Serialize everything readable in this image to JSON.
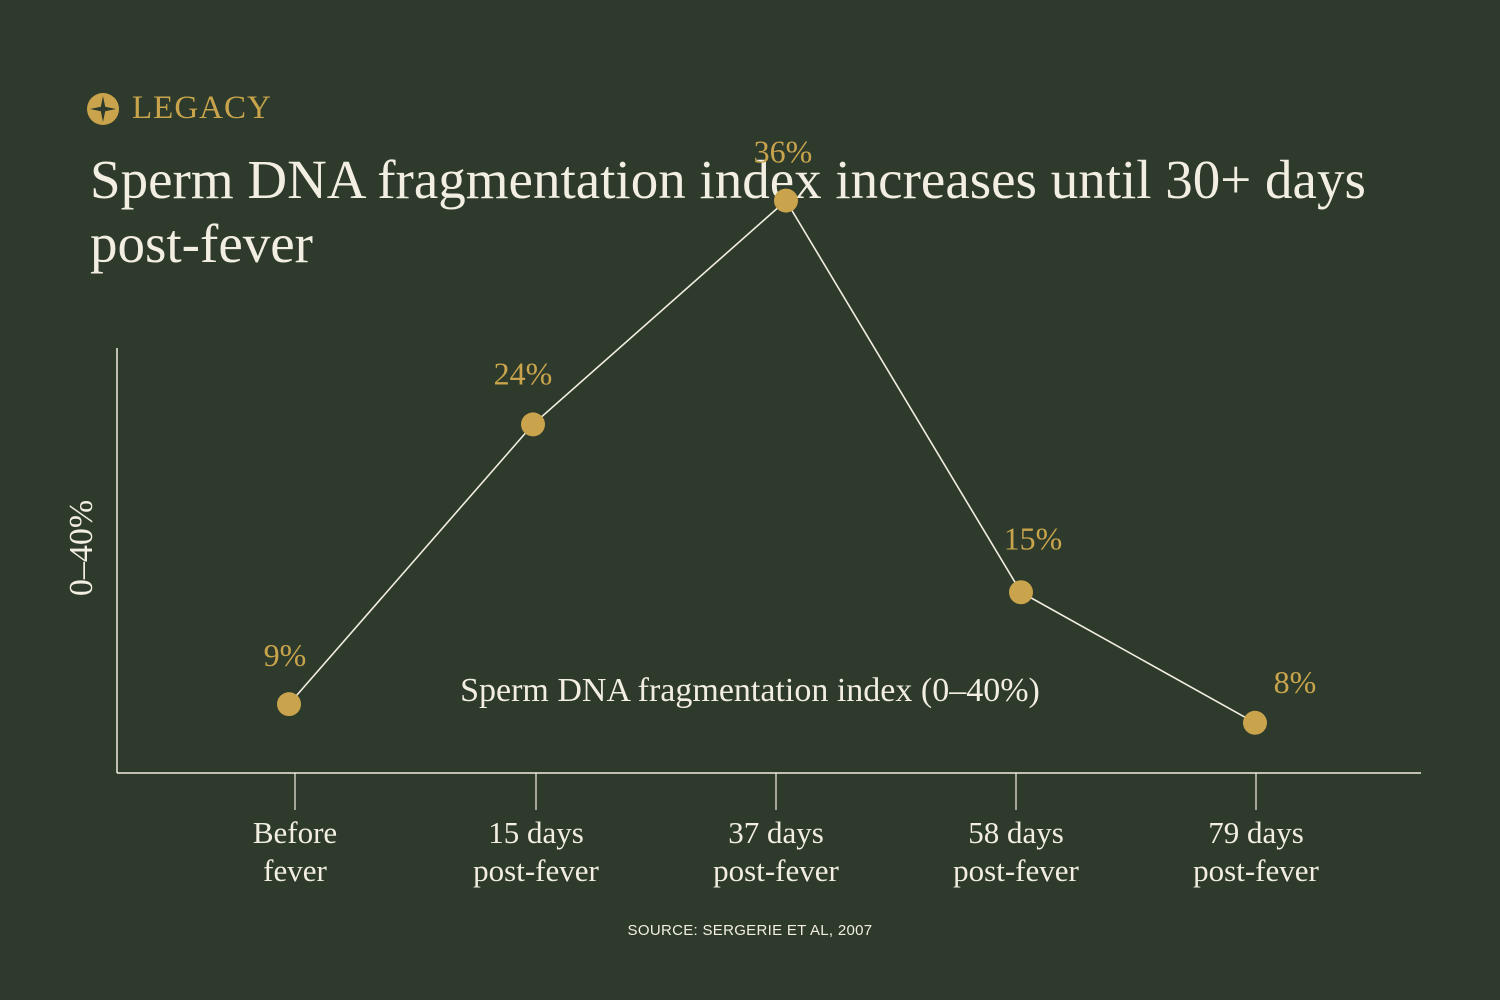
{
  "brand": {
    "name": "LEGACY",
    "icon": "legacy-star-icon",
    "color": "#c9a44c"
  },
  "title": "Sperm DNA fragmentation index increases until 30+ days post-fever",
  "source": "SOURCE: SERGERIE ET AL, 2007",
  "colors": {
    "background": "#2d3a2c",
    "accent": "#c9a44c",
    "text": "#f2eee2"
  },
  "chart_data": {
    "type": "line",
    "title": "Sperm DNA fragmentation index increases until 30+ days post-fever",
    "ylabel": "0–40%",
    "xlabel": "",
    "ylim": [
      0,
      40
    ],
    "grid": false,
    "categories": [
      [
        "Before",
        "fever"
      ],
      [
        "15 days",
        "post-fever"
      ],
      [
        "37 days",
        "post-fever"
      ],
      [
        "58 days",
        "post-fever"
      ],
      [
        "79 days",
        "post-fever"
      ]
    ],
    "series": [
      {
        "name": "Sperm DNA fragmentation index (0–40%)",
        "values": [
          9,
          24,
          36,
          15,
          8
        ],
        "labels": [
          "9%",
          "24%",
          "36%",
          "15%",
          "8%"
        ]
      }
    ]
  }
}
